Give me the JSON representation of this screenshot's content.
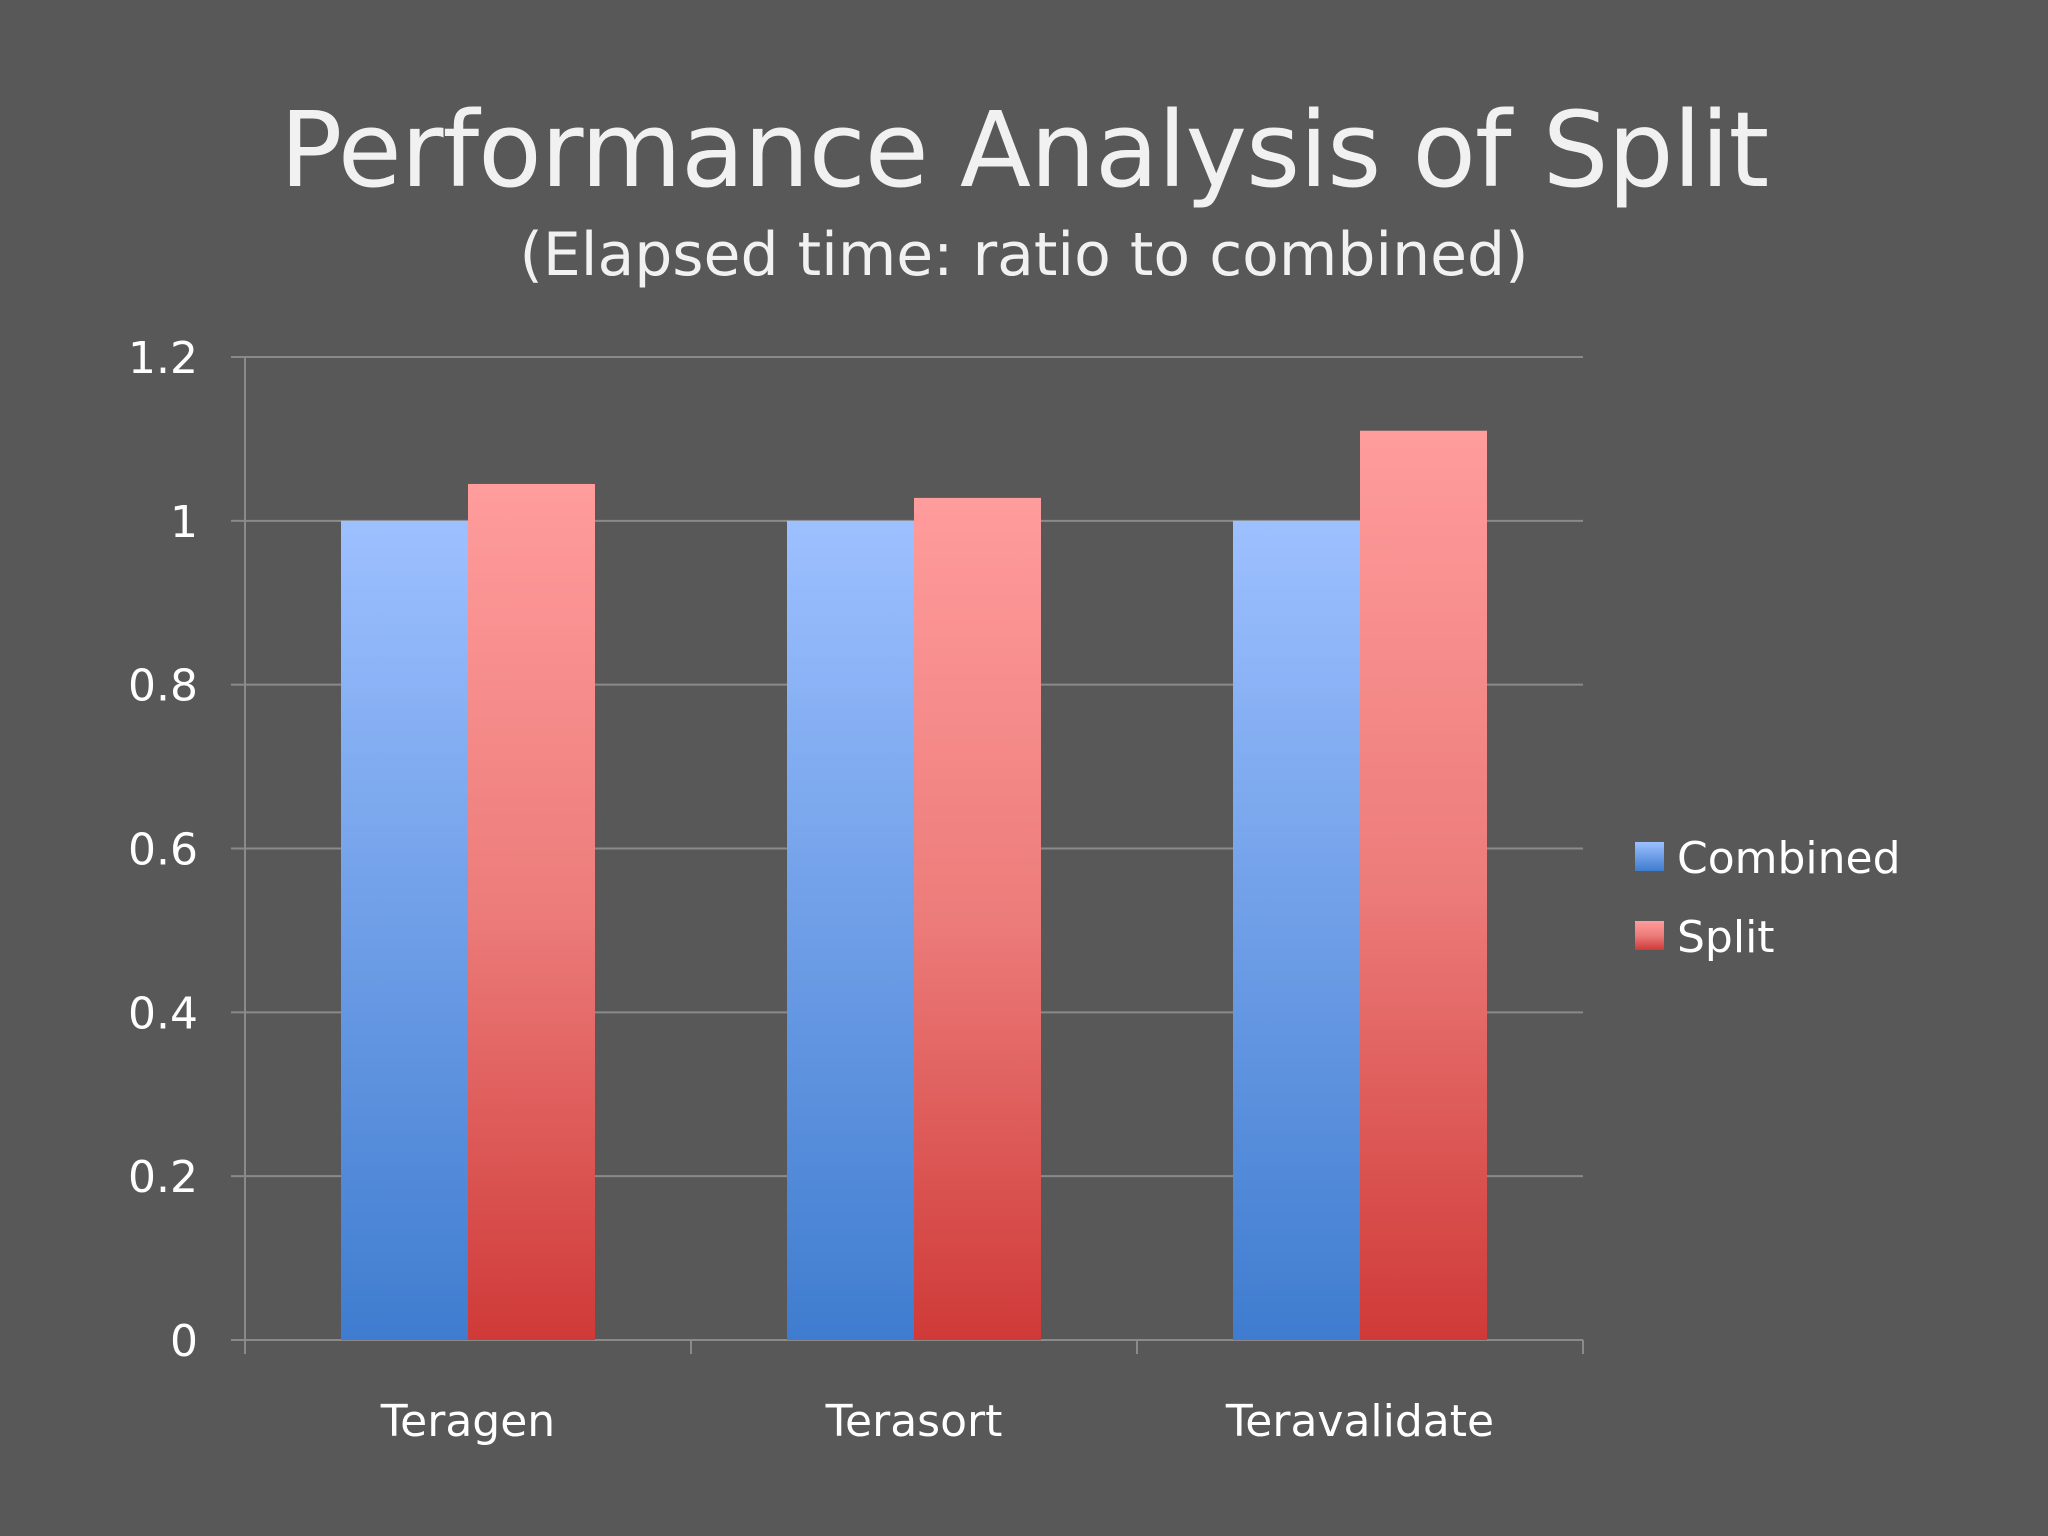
{
  "slide": {
    "title": "Performance Analysis of Split",
    "subtitle": "(Elapsed time: ratio to combined)"
  },
  "chart_data": {
    "type": "bar",
    "title": "Performance Analysis of Split",
    "subtitle": "(Elapsed time: ratio to combined)",
    "xlabel": "",
    "ylabel": "",
    "categories": [
      "Teragen",
      "Terasort",
      "Teravalidate"
    ],
    "series": [
      {
        "name": "Combined",
        "values": [
          1.0,
          1.0,
          1.0
        ],
        "color": "#4a84d3",
        "color_light": "#9dc0ff"
      },
      {
        "name": "Split",
        "values": [
          1.045,
          1.028,
          1.11
        ],
        "color": "#d23d3b",
        "color_light": "#ff9c9c"
      }
    ],
    "ylim": [
      0,
      1.2
    ],
    "yticks": [
      "0",
      "0.2",
      "0.4",
      "0.6",
      "0.8",
      "1",
      "1.2"
    ],
    "grid": true,
    "legend_position": "right",
    "colors": {
      "background": "#595859",
      "gridline": "#8a8a8a",
      "text": "#ffffff"
    }
  }
}
